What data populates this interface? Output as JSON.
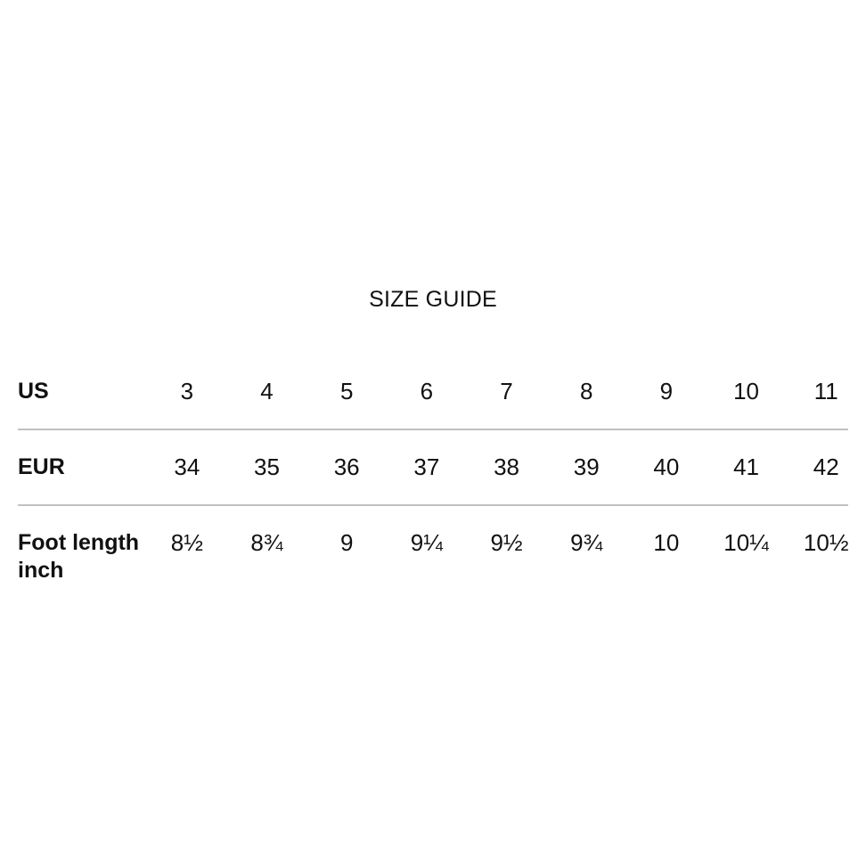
{
  "title": "SIZE GUIDE",
  "colors": {
    "text": "#111111",
    "divider": "#c1c1c1",
    "background": "#ffffff"
  },
  "table": {
    "rows": [
      {
        "label": "US",
        "values": [
          "3",
          "4",
          "5",
          "6",
          "7",
          "8",
          "9",
          "10",
          "11"
        ]
      },
      {
        "label": "EUR",
        "values": [
          "34",
          "35",
          "36",
          "37",
          "38",
          "39",
          "40",
          "41",
          "42"
        ]
      },
      {
        "label": "Foot length inch",
        "values": [
          "8½",
          "8¾",
          "9",
          "9¼",
          "9½",
          "9¾",
          "10",
          "10¼",
          "10½"
        ]
      }
    ]
  }
}
